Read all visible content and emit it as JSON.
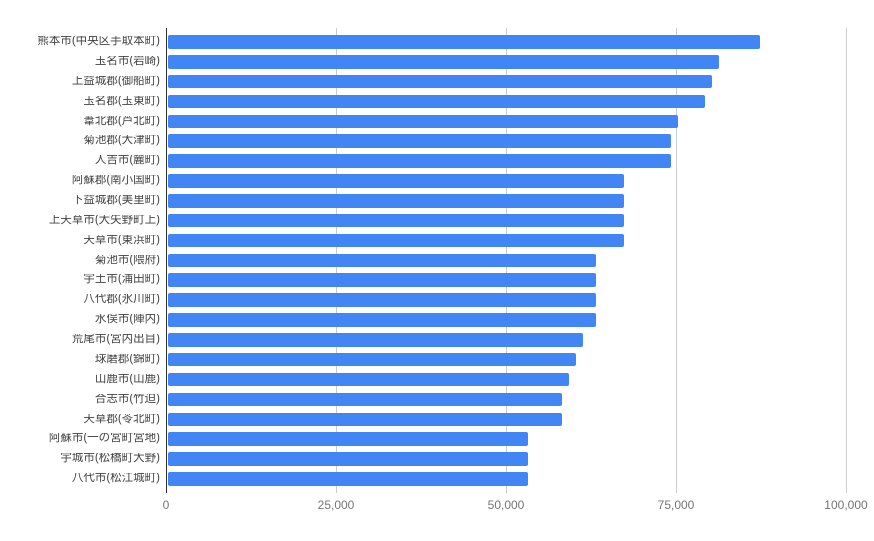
{
  "chart_data": {
    "type": "bar",
    "orientation": "horizontal",
    "title": "",
    "xlabel": "",
    "ylabel": "",
    "legend": "none",
    "grid": "vertical",
    "xlim": [
      0,
      100000
    ],
    "x_axis": {
      "tick_labels": [
        "0",
        "25,000",
        "50,000",
        "75,000",
        "100,000"
      ],
      "tick_values": [
        0,
        25000,
        50000,
        75000,
        100000
      ]
    },
    "categories": [
      "熊本市(中央区手取本町)",
      "玉名市(岩崎)",
      "上益城郡(御船町)",
      "玉名郡(玉東町)",
      "葦北郡(芦北町)",
      "菊池郡(大津町)",
      "人吉市(麓町)",
      "阿蘇郡(南小国町)",
      "下益城郡(美里町)",
      "上天草市(大矢野町上)",
      "天草市(東浜町)",
      "菊池市(隈府)",
      "宇土市(浦田町)",
      "八代郡(氷川町)",
      "水俣市(陣内)",
      "荒尾市(宮内出目)",
      "球磨郡(錦町)",
      "山鹿市(山鹿)",
      "合志市(竹迫)",
      "天草郡(苓北町)",
      "阿蘇市(一の宮町宮地)",
      "宇城市(松橋町大野)",
      "八代市(松江城町)"
    ],
    "values": [
      87000,
      81000,
      80000,
      79000,
      75000,
      74000,
      74000,
      67000,
      67000,
      67000,
      67000,
      63000,
      63000,
      63000,
      63000,
      61000,
      60000,
      59000,
      58000,
      58000,
      53000,
      53000,
      53000
    ],
    "colors": {
      "bar": "#4285f4",
      "gridline": "#cccccc",
      "baseline": "#333333",
      "x_tick_label_color": "#757575",
      "category_label_color": "#424242",
      "background": "#ffffff"
    }
  }
}
